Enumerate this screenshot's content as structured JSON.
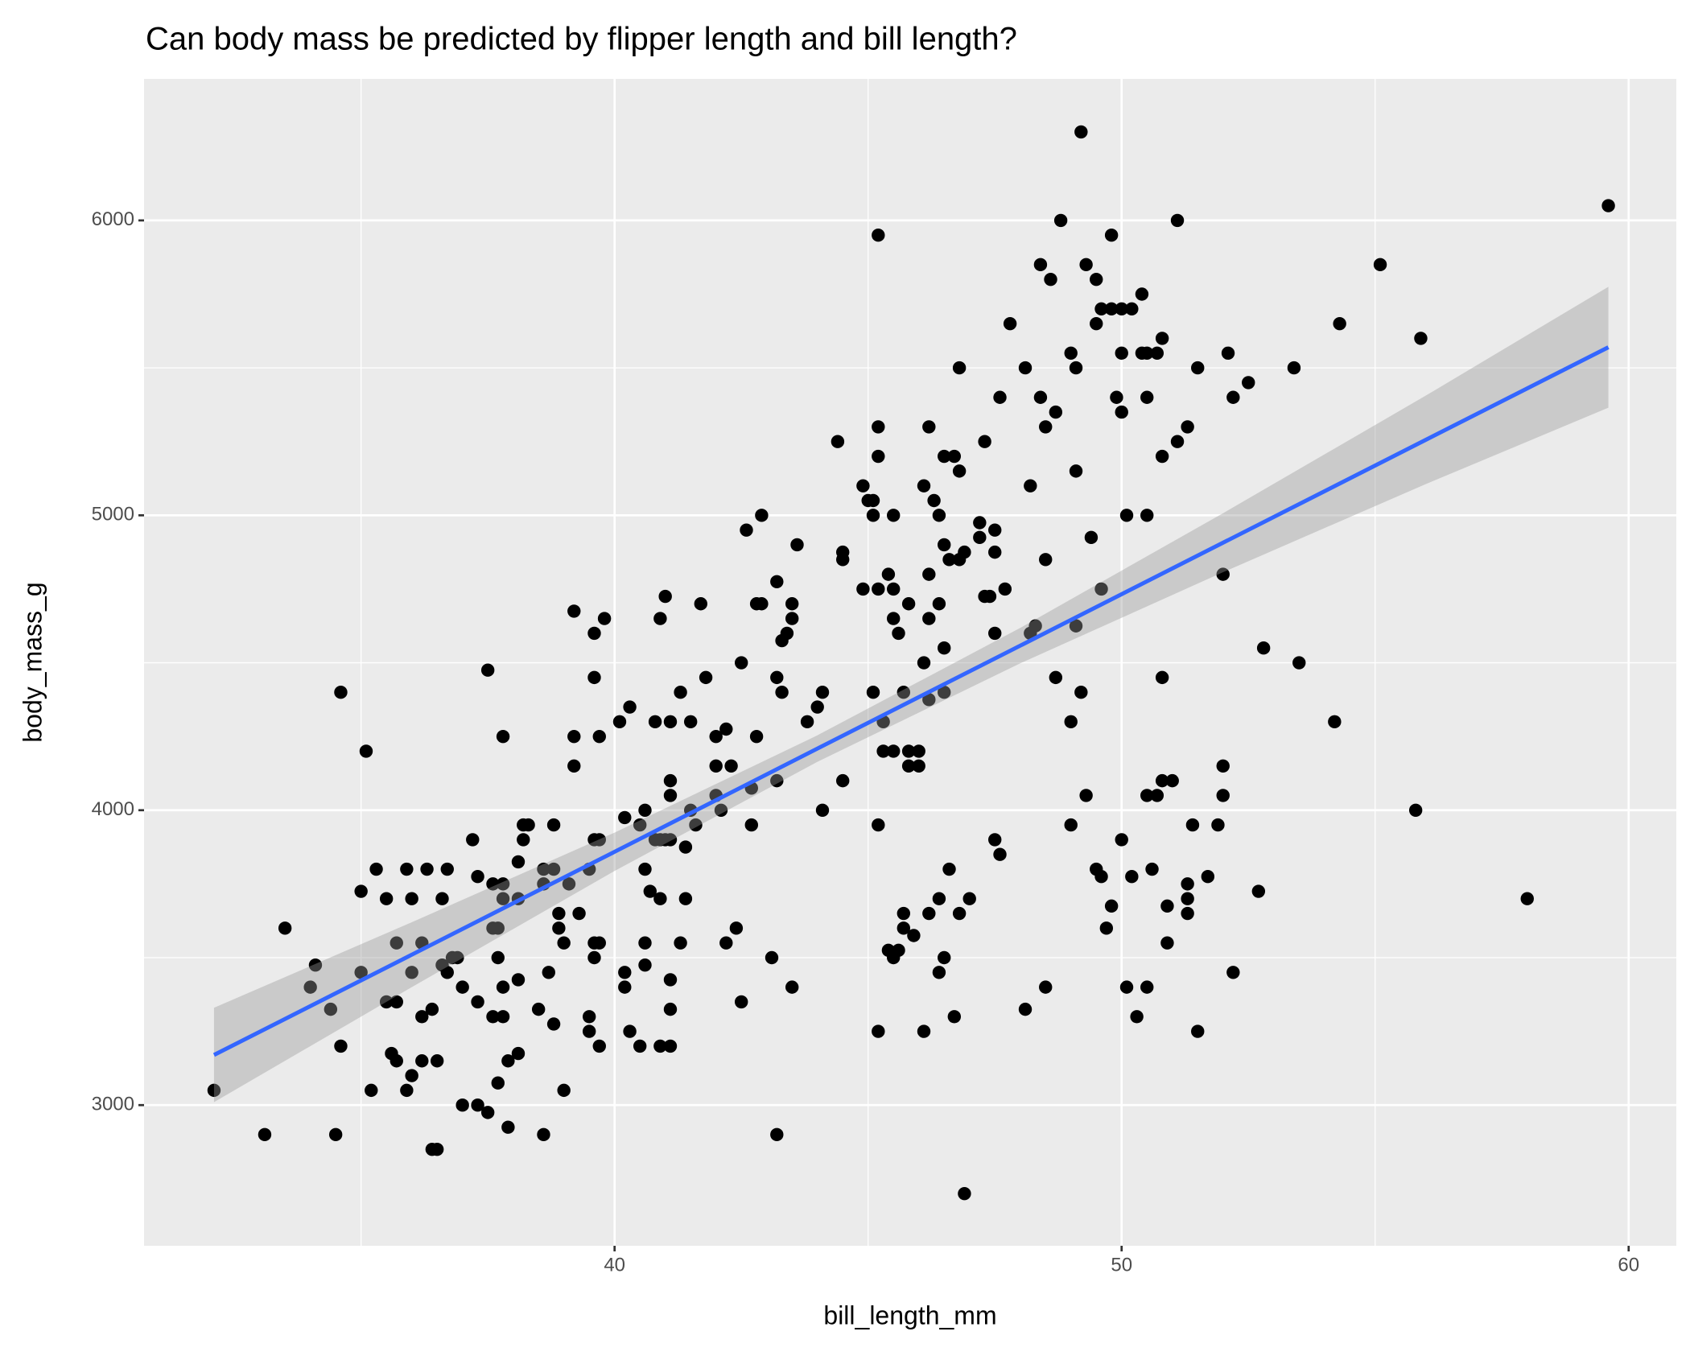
{
  "chart_data": {
    "type": "scatter",
    "title": "Can body mass be predicted by flipper length and bill length?",
    "x_label": "bill_length_mm",
    "y_label": "body_mass_g",
    "xlim": [
      30.72,
      60.94
    ],
    "ylim": [
      2523,
      6480
    ],
    "xticks": [
      40,
      50,
      60
    ],
    "yticks": [
      3000,
      4000,
      5000,
      6000
    ],
    "minor_xticks": [
      35,
      45,
      55
    ],
    "minor_yticks": [
      3500,
      4500,
      5500
    ],
    "grid": true,
    "color": "#000000",
    "x": [
      32.1,
      33.1,
      33.5,
      34.0,
      34.1,
      34.4,
      34.5,
      34.6,
      34.6,
      35.0,
      35.0,
      35.1,
      35.2,
      35.3,
      35.5,
      35.5,
      35.6,
      35.7,
      35.7,
      35.7,
      35.9,
      35.9,
      36.0,
      36.0,
      36.0,
      36.2,
      36.2,
      36.2,
      36.3,
      36.4,
      36.5,
      36.4,
      36.5,
      36.6,
      36.6,
      36.7,
      36.7,
      36.8,
      36.9,
      37.0,
      37.0,
      37.2,
      37.3,
      37.3,
      37.3,
      37.5,
      37.5,
      37.6,
      37.6,
      37.6,
      37.7,
      37.7,
      37.7,
      37.8,
      37.8,
      37.8,
      37.8,
      37.8,
      37.9,
      37.9,
      38.1,
      38.1,
      38.1,
      38.1,
      38.2,
      38.2,
      38.3,
      38.5,
      38.6,
      38.6,
      38.6,
      38.7,
      38.8,
      38.8,
      38.8,
      38.9,
      38.9,
      39.0,
      39.0,
      39.1,
      39.2,
      39.2,
      39.2,
      39.3,
      39.5,
      39.5,
      39.5,
      39.6,
      39.6,
      39.6,
      39.6,
      39.6,
      39.7,
      39.7,
      39.7,
      39.7,
      39.8,
      40.1,
      40.2,
      40.2,
      40.2,
      40.3,
      40.3,
      40.5,
      40.5,
      40.6,
      40.6,
      40.6,
      40.6,
      40.7,
      40.8,
      40.8,
      40.9,
      40.9,
      40.9,
      40.9,
      41.0,
      41.0,
      41.1,
      41.1,
      41.1,
      41.1,
      41.1,
      41.1,
      41.1,
      41.3,
      41.3,
      41.4,
      41.4,
      41.5,
      41.5,
      41.6,
      41.7,
      41.8,
      42.0,
      42.0,
      42.0,
      42.1,
      42.2,
      42.2,
      42.3,
      42.4,
      42.5,
      42.5,
      42.6,
      42.7,
      42.7,
      42.8,
      42.8,
      42.9,
      42.9,
      43.1,
      43.2,
      43.2,
      43.2,
      43.2,
      43.3,
      43.3,
      43.4,
      43.5,
      43.5,
      43.5,
      43.6,
      43.8,
      44.0,
      44.1,
      44.1,
      44.4,
      44.5,
      44.5,
      44.5,
      44.9,
      44.9,
      45.0,
      45.1,
      45.1,
      45.1,
      45.2,
      45.2,
      45.2,
      45.2,
      45.2,
      45.2,
      45.3,
      45.3,
      45.4,
      45.4,
      45.5,
      45.5,
      45.5,
      45.5,
      45.5,
      45.6,
      45.6,
      45.7,
      45.7,
      45.7,
      45.8,
      45.8,
      45.8,
      45.9,
      46.0,
      46.0,
      46.1,
      46.1,
      46.1,
      46.2,
      46.2,
      46.2,
      46.2,
      46.2,
      46.3,
      46.4,
      46.4,
      46.4,
      46.4,
      46.5,
      46.5,
      46.5,
      46.5,
      46.5,
      46.6,
      46.6,
      46.7,
      46.7,
      46.8,
      46.8,
      46.8,
      46.8,
      46.9,
      46.9,
      47.0,
      47.2,
      47.2,
      47.3,
      47.3,
      47.4,
      47.5,
      47.5,
      47.5,
      47.5,
      47.6,
      47.6,
      47.7,
      47.8,
      48.1,
      48.1,
      48.2,
      48.2,
      48.3,
      48.4,
      48.4,
      48.5,
      48.5,
      48.5,
      48.6,
      48.7,
      48.7,
      48.8,
      49.0,
      49.0,
      49.0,
      49.1,
      49.1,
      49.1,
      49.2,
      49.2,
      49.3,
      49.3,
      49.4,
      49.5,
      49.5,
      49.5,
      49.6,
      49.6,
      49.6,
      49.7,
      49.8,
      49.8,
      49.8,
      49.9,
      50.0,
      50.0,
      50.0,
      50.0,
      50.1,
      50.1,
      50.2,
      50.2,
      50.3,
      50.4,
      50.4,
      50.5,
      50.5,
      50.5,
      50.5,
      50.5,
      50.6,
      50.7,
      50.7,
      50.8,
      50.8,
      50.8,
      50.8,
      50.9,
      50.9,
      51.0,
      51.1,
      51.1,
      51.3,
      51.3,
      51.3,
      51.3,
      51.4,
      51.5,
      51.5,
      51.7,
      51.9,
      52.0,
      52.0,
      52.0,
      52.1,
      52.2,
      52.2,
      52.5,
      52.7,
      52.8,
      53.4,
      53.5,
      54.2,
      54.3,
      55.1,
      55.8,
      55.9,
      58.0,
      59.6
    ],
    "values": [
      3050,
      2900,
      3600,
      3400,
      3475,
      3325,
      2900,
      3200,
      4400,
      3725,
      3450,
      4200,
      3050,
      3800,
      3350,
      3700,
      3175,
      3550,
      3350,
      3150,
      3050,
      3800,
      3100,
      3700,
      3450,
      3150,
      3550,
      3300,
      3800,
      2850,
      2850,
      3325,
      3150,
      3475,
      3700,
      3800,
      3450,
      3500,
      3500,
      3400,
      3000,
      3900,
      3775,
      3000,
      3350,
      4475,
      2975,
      3750,
      3300,
      3600,
      3600,
      3500,
      3075,
      3300,
      4250,
      3400,
      3750,
      3700,
      2925,
      3150,
      3425,
      3175,
      3825,
      3700,
      3950,
      3900,
      3950,
      3325,
      2900,
      3800,
      3750,
      3450,
      3800,
      3275,
      3950,
      3600,
      3650,
      3050,
      3550,
      3750,
      4675,
      4150,
      4250,
      3650,
      3300,
      3250,
      3800,
      4450,
      4600,
      3500,
      3550,
      3900,
      3900,
      4250,
      3200,
      3550,
      4650,
      4300,
      3975,
      3450,
      3400,
      4350,
      3250,
      3200,
      3950,
      4000,
      3800,
      3475,
      3550,
      3725,
      4300,
      3900,
      4650,
      3700,
      3200,
      3900,
      4725,
      3900,
      4050,
      4100,
      4300,
      3325,
      3425,
      3900,
      3200,
      3550,
      4400,
      3875,
      3700,
      4000,
      4300,
      3950,
      4700,
      4450,
      4050,
      4150,
      4250,
      4000,
      4275,
      3550,
      4150,
      3600,
      3350,
      4500,
      4950,
      4075,
      3950,
      4250,
      4700,
      5000,
      4700,
      3500,
      4775,
      2900,
      4100,
      4450,
      4575,
      4400,
      4600,
      4700,
      4650,
      3400,
      4900,
      4300,
      4350,
      4400,
      4000,
      5250,
      4875,
      4850,
      4100,
      5100,
      4750,
      5050,
      5000,
      5050,
      4400,
      5950,
      5300,
      5200,
      4750,
      3950,
      3250,
      4200,
      4300,
      4800,
      3525,
      4200,
      5000,
      4650,
      4750,
      3500,
      4600,
      3525,
      4400,
      3650,
      3600,
      4700,
      4200,
      4150,
      3575,
      4150,
      4200,
      5100,
      4500,
      3250,
      5300,
      4800,
      4650,
      3650,
      4375,
      5050,
      5000,
      4700,
      3450,
      3700,
      5200,
      4900,
      4550,
      4400,
      3500,
      4850,
      3800,
      5200,
      3300,
      5500,
      5150,
      4850,
      3650,
      4875,
      2700,
      3700,
      4975,
      4925,
      4725,
      5250,
      4725,
      4950,
      4875,
      4600,
      3900,
      5400,
      3850,
      4750,
      5650,
      5500,
      3325,
      5100,
      4600,
      4625,
      5850,
      5400,
      5300,
      4850,
      3400,
      5800,
      5350,
      4450,
      6000,
      5550,
      4300,
      3950,
      5500,
      5150,
      4625,
      6300,
      4400,
      5850,
      4050,
      4925,
      5800,
      5650,
      3800,
      5700,
      4750,
      3775,
      3600,
      5700,
      5950,
      3675,
      5400,
      5700,
      5550,
      5350,
      3900,
      5000,
      3400,
      5700,
      3775,
      3300,
      5750,
      5550,
      5550,
      5400,
      5000,
      4050,
      3400,
      3800,
      5550,
      4050,
      5600,
      5200,
      4450,
      4100,
      3675,
      3550,
      4100,
      5250,
      6000,
      5300,
      3750,
      3700,
      3650,
      3950,
      5500,
      3250,
      3775,
      3950,
      4800,
      4150,
      4050,
      5550,
      5400,
      3450,
      5450,
      3725,
      4550,
      5500,
      4500,
      4300,
      5650,
      5850,
      4000,
      5600,
      3700,
      6050
    ],
    "fit": {
      "color": "#3366ff",
      "band_color": "#999999",
      "x": [
        32.1,
        36,
        40,
        44,
        48,
        52,
        56,
        59.6
      ],
      "values": [
        3170,
        3510,
        3859,
        4209,
        4558,
        4907,
        5256,
        5570
      ],
      "lower": [
        3010,
        3400,
        3794,
        4164,
        4498,
        4807,
        5106,
        5365
      ],
      "upper": [
        3330,
        3620,
        3924,
        4254,
        4618,
        5007,
        5406,
        5775
      ]
    }
  }
}
